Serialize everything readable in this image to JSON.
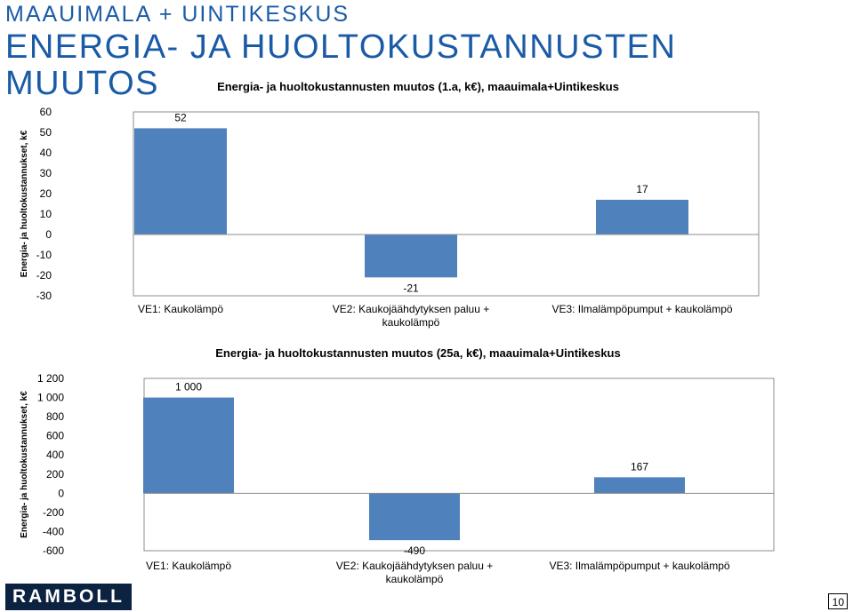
{
  "header": {
    "title_line1": "MAAUIMALA + UINTIKESKUS",
    "title_line2": "ENERGIA- JA HUOLTOKUSTANNUSTEN",
    "title_line3": "MUUTOS",
    "text_color": "#1a5ba6"
  },
  "footer": {
    "logo_text": "RAMBOLL",
    "page_number": "10",
    "logo_color": "#0b2340"
  },
  "bar_color": "#4f81bd",
  "chart_data": [
    {
      "type": "bar",
      "title": "Energia- ja huoltokustannusten muutos (1.a, k€), maauimala+Uintikeskus",
      "xlabel": "",
      "ylabel": "Energia- ja huoltokustannukset, k€",
      "categories": [
        [
          "VE1: Kaukolämpö"
        ],
        [
          "VE2: Kaukojäähdytyksen paluu +",
          "kaukolämpö"
        ],
        [
          "VE3: Ilmalämpöpumput + kaukolämpö"
        ]
      ],
      "values": [
        52,
        -21,
        17
      ],
      "data_labels": [
        "52",
        "-21",
        "17"
      ],
      "ylim": [
        -30,
        60
      ],
      "yticks": [
        60,
        50,
        40,
        30,
        20,
        10,
        0,
        -10,
        -20,
        -30
      ],
      "ytick_labels": [
        "60",
        "50",
        "40",
        "30",
        "20",
        "10",
        "0",
        "-10",
        "-20",
        "-30"
      ],
      "grid": false,
      "legend": "none"
    },
    {
      "type": "bar",
      "title": "Energia- ja huoltokustannusten muutos (25a, k€), maauimala+Uintikeskus",
      "xlabel": "",
      "ylabel": "Energia- ja huoltokustannukset, k€",
      "categories": [
        [
          "VE1: Kaukolämpö"
        ],
        [
          "VE2: Kaukojäähdytyksen paluu +",
          "kaukolämpö"
        ],
        [
          "VE3: Ilmalämpöpumput + kaukolämpö"
        ]
      ],
      "values": [
        1000,
        -490,
        167
      ],
      "data_labels": [
        "1 000",
        "-490",
        "167"
      ],
      "ylim": [
        -600,
        1200
      ],
      "yticks": [
        1200,
        1000,
        800,
        600,
        400,
        200,
        0,
        -200,
        -400,
        -600
      ],
      "ytick_labels": [
        "1 200",
        "1 000",
        "800",
        "600",
        "400",
        "200",
        "0",
        "-200",
        "-400",
        "-600"
      ],
      "grid": false,
      "legend": "none"
    }
  ]
}
